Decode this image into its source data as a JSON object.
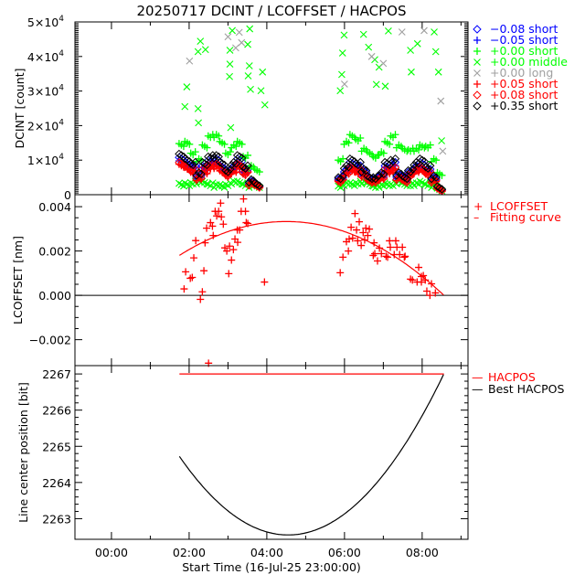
{
  "title": "20250717 DCINT / LCOFFSET / HACPOS",
  "chart_data": [
    {
      "type": "scatter",
      "ylabel": "DCINT [count]",
      "ylim": [
        0,
        50000
      ],
      "xlim": [
        -0.94,
        9.18
      ],
      "yticks": [
        {
          "value": 0,
          "label": "0",
          "exp": ""
        },
        {
          "value": 10000,
          "label": "1×10",
          "exp": "4"
        },
        {
          "value": 20000,
          "label": "2×10",
          "exp": "4"
        },
        {
          "value": 30000,
          "label": "3×10",
          "exp": "4"
        },
        {
          "value": 40000,
          "label": "4×10",
          "exp": "4"
        },
        {
          "value": 50000,
          "label": "5×10",
          "exp": "4"
        }
      ],
      "times": [
        1.8,
        1.95,
        2.1,
        2.25,
        2.4,
        2.55,
        2.7,
        2.85,
        3.0,
        3.15,
        3.3,
        3.45,
        3.6,
        3.75,
        5.9,
        6.05,
        6.2,
        6.35,
        6.5,
        6.65,
        6.8,
        6.95,
        7.1,
        7.25,
        7.4,
        7.55,
        7.7,
        7.85,
        8.0,
        8.15,
        8.3,
        8.45
      ],
      "series": [
        {
          "name": "−0.08 short",
          "marker": "diamond",
          "color": "#0000ff",
          "values": [
            10000,
            9000,
            8000,
            5500,
            8000,
            10000,
            10000,
            8000,
            6500,
            8000,
            10000,
            7000,
            3500,
            2800,
            4500,
            7000,
            9000,
            8000,
            6500,
            4500,
            4500,
            5500,
            8000,
            9000,
            5500,
            4500,
            6500,
            8000,
            9000,
            7000,
            4500,
            1800
          ]
        },
        {
          "name": "−0.05 short",
          "marker": "plus",
          "color": "#0000ff",
          "values": [
            9000,
            8500,
            7500,
            5000,
            7500,
            9000,
            9000,
            7500,
            6000,
            7500,
            9000,
            6500,
            3300,
            2600,
            4200,
            6500,
            8000,
            7500,
            6000,
            4200,
            4200,
            5000,
            7500,
            8000,
            5000,
            4200,
            6000,
            7500,
            8000,
            6500,
            4200,
            1600
          ]
        },
        {
          "name": "+0.00 short",
          "marker": "plus",
          "color": "#00ff00",
          "values": [
            14000,
            15000,
            12000,
            10000,
            14000,
            17000,
            17000,
            15000,
            12000,
            14000,
            15000,
            11000,
            8000,
            7000,
            10000,
            15000,
            17000,
            16000,
            13000,
            12000,
            11000,
            12000,
            15000,
            17000,
            14000,
            13000,
            13000,
            13000,
            14000,
            14000,
            10000,
            6000
          ]
        },
        {
          "name": "+0.00 middle",
          "marker": "x",
          "color": "#00ff00",
          "values": [
            2500,
            3000,
            3500,
            3500,
            3500,
            3000,
            2500,
            2500,
            3000,
            3500,
            3500,
            3000,
            2500,
            2500,
            2500,
            3000,
            3000,
            3500,
            3500,
            3000,
            2500,
            2500,
            3000,
            3000,
            3500,
            3000,
            3000,
            3000,
            3500,
            3000,
            2500,
            1500
          ],
          "extra_points": [
            [
              2.29,
              44400
            ],
            [
              2.23,
              41400
            ],
            [
              2.42,
              42000
            ],
            [
              1.94,
              31200
            ],
            [
              1.89,
              25500
            ],
            [
              2.23,
              24900
            ],
            [
              2.24,
              20800
            ],
            [
              3.11,
              47500
            ],
            [
              3.56,
              48000
            ],
            [
              3.05,
              41800
            ],
            [
              3.05,
              37800
            ],
            [
              3.04,
              34200
            ],
            [
              3.51,
              43500
            ],
            [
              3.55,
              37300
            ],
            [
              3.52,
              34400
            ],
            [
              3.58,
              30500
            ],
            [
              3.89,
              35500
            ],
            [
              3.85,
              30100
            ],
            [
              3.95,
              26000
            ],
            [
              3.07,
              19400
            ],
            [
              5.99,
              46200
            ],
            [
              5.95,
              41000
            ],
            [
              5.93,
              34800
            ],
            [
              5.89,
              30100
            ],
            [
              6.49,
              46400
            ],
            [
              6.62,
              42700
            ],
            [
              6.78,
              39100
            ],
            [
              6.89,
              36900
            ],
            [
              6.82,
              31900
            ],
            [
              7.05,
              31400
            ],
            [
              7.13,
              47400
            ],
            [
              7.7,
              41800
            ],
            [
              7.72,
              35500
            ],
            [
              7.88,
              43700
            ],
            [
              8.31,
              47100
            ],
            [
              8.35,
              41400
            ],
            [
              8.42,
              35500
            ],
            [
              8.5,
              15600
            ]
          ]
        },
        {
          "name": "+0.00 long",
          "marker": "x",
          "color": "#a0a0a0",
          "values": [],
          "extra_points": [
            [
              2.01,
              38700
            ],
            [
              3.0,
              45700
            ],
            [
              3.29,
              47000
            ],
            [
              3.35,
              44000
            ],
            [
              3.2,
              42500
            ],
            [
              6.0,
              32000
            ],
            [
              7.48,
              47100
            ],
            [
              8.05,
              47500
            ],
            [
              8.48,
              27100
            ],
            [
              8.53,
              12600
            ],
            [
              6.7,
              40000
            ],
            [
              7.0,
              38000
            ]
          ]
        },
        {
          "name": "+0.05 short",
          "marker": "plus",
          "color": "#ff0000",
          "values": [
            8000,
            7500,
            6500,
            4500,
            6500,
            8000,
            8000,
            6500,
            5500,
            6500,
            8000,
            6000,
            3000,
            2400,
            3800,
            6000,
            7000,
            6500,
            5500,
            3800,
            3800,
            4500,
            6500,
            7000,
            4500,
            3800,
            5500,
            6500,
            7000,
            6000,
            3800,
            1400
          ]
        },
        {
          "name": "+0.08 short",
          "marker": "diamond",
          "color": "#ff0000",
          "values": [
            8500,
            8000,
            7000,
            4800,
            7000,
            8500,
            8500,
            7000,
            5800,
            7000,
            8500,
            6200,
            3100,
            2500,
            4000,
            6200,
            7500,
            7000,
            5800,
            4000,
            4000,
            4800,
            7000,
            7500,
            4800,
            4000,
            5800,
            7000,
            7500,
            6200,
            4000,
            1500
          ]
        },
        {
          "name": "+0.35 short",
          "marker": "diamond",
          "color": "#000000",
          "values": [
            11000,
            10000,
            9000,
            6000,
            9000,
            11000,
            11000,
            9000,
            7000,
            9000,
            11000,
            8000,
            4000,
            3000,
            5000,
            8000,
            10000,
            9000,
            7000,
            5000,
            5000,
            6000,
            9000,
            10000,
            6000,
            5000,
            7000,
            9000,
            10000,
            8000,
            5000,
            2000
          ]
        }
      ]
    },
    {
      "type": "scatter",
      "ylabel": "LCOFFSET [nm]",
      "ylim": [
        -0.00317,
        0.00454
      ],
      "yticks": [
        {
          "value": 0.004,
          "label": "0.004"
        },
        {
          "value": 0.002,
          "label": "0.002"
        },
        {
          "value": 0,
          "label": "0.000"
        },
        {
          "value": -0.002,
          "label": "−0.002"
        }
      ],
      "zero_line": 0,
      "legend": [
        {
          "name": "LCOFFSET",
          "symbol": "+",
          "color": "#ff0000"
        },
        {
          "name": "Fitting curve",
          "symbol": "–",
          "color": "#ff0000"
        }
      ],
      "points": [
        [
          3.4,
          0.00435
        ],
        [
          2.81,
          0.00416
        ],
        [
          2.67,
          0.00379
        ],
        [
          2.76,
          0.00379
        ],
        [
          3.34,
          0.00379
        ],
        [
          3.45,
          0.00379
        ],
        [
          2.71,
          0.00358
        ],
        [
          2.83,
          0.00354
        ],
        [
          2.55,
          0.00328
        ],
        [
          2.6,
          0.00312
        ],
        [
          2.88,
          0.00321
        ],
        [
          2.45,
          0.00303
        ],
        [
          3.47,
          0.00328
        ],
        [
          3.51,
          0.00324
        ],
        [
          3.24,
          0.00295
        ],
        [
          3.3,
          0.00295
        ],
        [
          2.62,
          0.0027
        ],
        [
          3.18,
          0.00254
        ],
        [
          2.17,
          0.00247
        ],
        [
          2.41,
          0.00237
        ],
        [
          3.25,
          0.00239
        ],
        [
          3.04,
          0.00222
        ],
        [
          2.92,
          0.00214
        ],
        [
          2.97,
          0.002
        ],
        [
          3.14,
          0.00206
        ],
        [
          2.12,
          0.00169
        ],
        [
          3.09,
          0.00159
        ],
        [
          1.91,
          0.00106
        ],
        [
          2.38,
          0.00111
        ],
        [
          3.02,
          0.00098
        ],
        [
          2.03,
          0.00077
        ],
        [
          2.08,
          0.00081
        ],
        [
          1.87,
          0.00029
        ],
        [
          3.94,
          0.0006
        ],
        [
          2.34,
          0.00016
        ],
        [
          2.29,
          -0.00018
        ],
        [
          2.5,
          -0.00306
        ],
        [
          6.27,
          0.00369
        ],
        [
          6.38,
          0.00332
        ],
        [
          6.17,
          0.00307
        ],
        [
          6.31,
          0.00295
        ],
        [
          6.55,
          0.00303
        ],
        [
          6.64,
          0.00299
        ],
        [
          6.48,
          0.00283
        ],
        [
          6.6,
          0.0027
        ],
        [
          6.12,
          0.00254
        ],
        [
          6.21,
          0.00258
        ],
        [
          6.05,
          0.00242
        ],
        [
          6.34,
          0.00246
        ],
        [
          6.52,
          0.0025
        ],
        [
          6.43,
          0.00225
        ],
        [
          6.1,
          0.002
        ],
        [
          5.96,
          0.00172
        ],
        [
          5.89,
          0.00102
        ],
        [
          6.76,
          0.00237
        ],
        [
          7.16,
          0.00246
        ],
        [
          7.32,
          0.00246
        ],
        [
          7.18,
          0.00217
        ],
        [
          7.35,
          0.00217
        ],
        [
          7.49,
          0.00217
        ],
        [
          6.9,
          0.00213
        ],
        [
          6.78,
          0.00188
        ],
        [
          6.74,
          0.0018
        ],
        [
          6.95,
          0.00188
        ],
        [
          7.07,
          0.00176
        ],
        [
          7.11,
          0.00172
        ],
        [
          7.28,
          0.00184
        ],
        [
          7.42,
          0.00184
        ],
        [
          7.54,
          0.00172
        ],
        [
          7.56,
          0.00176
        ],
        [
          6.85,
          0.00155
        ],
        [
          7.91,
          0.00126
        ],
        [
          7.7,
          0.00073
        ],
        [
          7.75,
          0.00069
        ],
        [
          7.98,
          0.00085
        ],
        [
          8.03,
          0.00089
        ],
        [
          7.87,
          0.0006
        ],
        [
          7.98,
          0.0006
        ],
        [
          8.08,
          0.00069
        ],
        [
          8.24,
          0.00052
        ],
        [
          8.12,
          0.00019
        ],
        [
          8.2,
          0.0
        ],
        [
          8.34,
          0.00011
        ]
      ],
      "fit": {
        "peak_time": 4.5,
        "peak_value": 0.00333,
        "curvature": -0.000202,
        "t_range": [
          1.75,
          8.56
        ]
      }
    },
    {
      "type": "line",
      "ylabel": "Line center position [bit]",
      "ylim": [
        2262.43,
        2267.23
      ],
      "yticks": [
        {
          "value": 2263,
          "label": "2263"
        },
        {
          "value": 2264,
          "label": "2264"
        },
        {
          "value": 2265,
          "label": "2265"
        },
        {
          "value": 2266,
          "label": "2266"
        },
        {
          "value": 2267,
          "label": "2267"
        }
      ],
      "legend": [
        {
          "name": "HACPOS",
          "symbol": "—",
          "color": "#ff0000"
        },
        {
          "name": "Best HACPOS",
          "symbol": "—",
          "color": "#000000"
        }
      ],
      "hacpos": {
        "value": 2267,
        "t_range": [
          1.75,
          8.56
        ]
      },
      "best_hacpos": {
        "min_time": 4.55,
        "min_value": 2262.55,
        "curvature": 0.277,
        "t_range": [
          1.75,
          8.56
        ]
      },
      "xlabel": "Start Time (16-Jul-25 23:00:00)",
      "xticks": [
        {
          "value": 0,
          "label": "00:00"
        },
        {
          "value": 2,
          "label": "02:00"
        },
        {
          "value": 4,
          "label": "04:00"
        },
        {
          "value": 6,
          "label": "06:00"
        },
        {
          "value": 8,
          "label": "08:00"
        }
      ]
    }
  ]
}
